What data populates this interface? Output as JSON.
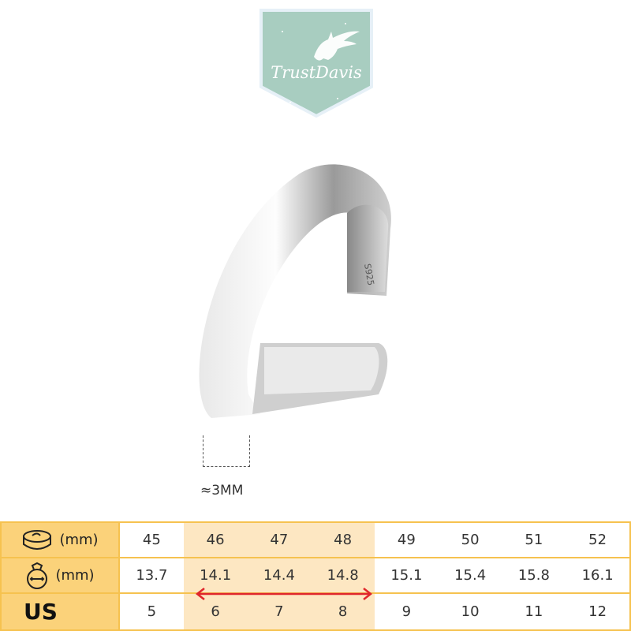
{
  "brand": {
    "name": "TrustDavis",
    "color": "#a8cdc0"
  },
  "product": {
    "engraving": "S925",
    "width_label": "≈3MM"
  },
  "size_table": {
    "rows": [
      {
        "icon": "tape-measure-icon",
        "label": "(mm)",
        "values": [
          "45",
          "46",
          "47",
          "48",
          "49",
          "50",
          "51",
          "52"
        ]
      },
      {
        "icon": "ring-diameter-icon",
        "label": "(mm)",
        "values": [
          "13.7",
          "14.1",
          "14.4",
          "14.8",
          "15.1",
          "15.4",
          "15.8",
          "16.1"
        ]
      },
      {
        "label": "US",
        "values": [
          "5",
          "6",
          "7",
          "8",
          "9",
          "10",
          "11",
          "12"
        ]
      }
    ],
    "highlighted_columns": [
      "46",
      "47",
      "48"
    ],
    "header_color": "#fbd27a",
    "highlight_color": "#fde7c2",
    "arrow_color": "#e0262b"
  }
}
